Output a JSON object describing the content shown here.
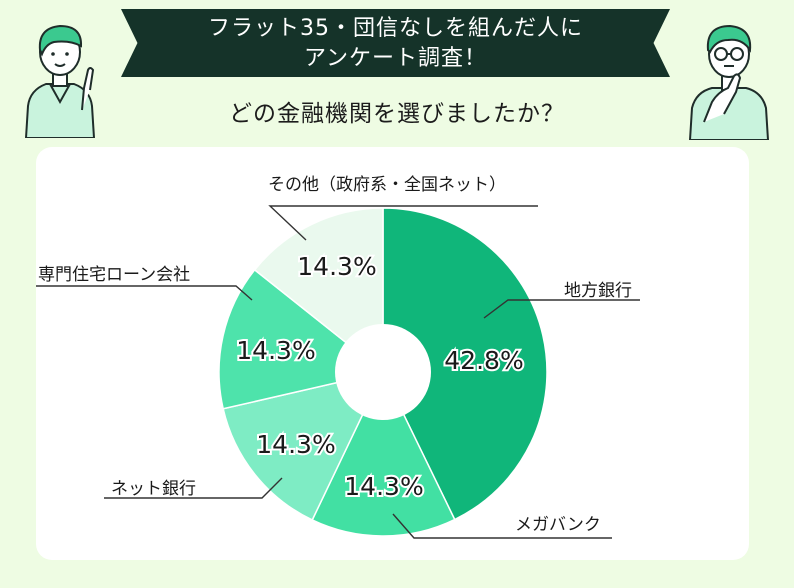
{
  "header": {
    "title_line1": "フラット35・団信なしを組んだ人に",
    "title_line2": "アンケート調査！",
    "question": "どの金融機関を選びましたか？"
  },
  "colors": {
    "page_bg": "#eefce3",
    "banner_bg": "#153329",
    "card_bg": "#ffffff",
    "slice_1": "#10b67a",
    "slice_2": "#42e0a3",
    "slice_3": "#7eecc4",
    "slice_4": "#4ee3ab",
    "slice_5": "#eaf9ee"
  },
  "illustrations": {
    "left": "person-pointing-icon",
    "right": "person-thinking-icon"
  },
  "chart_data": {
    "type": "pie",
    "donut": true,
    "start_angle_deg": 0,
    "direction": "clockwise",
    "slices": [
      {
        "label": "地方銀行",
        "value": 42.8,
        "value_label": "42.8%",
        "color": "#10b67a"
      },
      {
        "label": "メガバンク",
        "value": 14.3,
        "value_label": "14.3%",
        "color": "#42e0a3"
      },
      {
        "label": "ネット銀行",
        "value": 14.3,
        "value_label": "14.3%",
        "color": "#7eecc4"
      },
      {
        "label": "専門住宅ローン会社",
        "value": 14.3,
        "value_label": "14.3%",
        "color": "#4ee3ab"
      },
      {
        "label": "その他（政府系・全国ネット）",
        "value": 14.3,
        "value_label": "14.3%",
        "color": "#eaf9ee"
      }
    ]
  }
}
